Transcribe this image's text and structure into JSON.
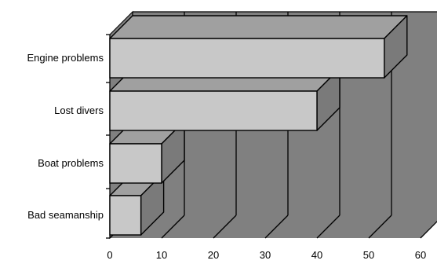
{
  "chart_data": {
    "type": "bar",
    "orientation": "horizontal",
    "three_d": true,
    "categories": [
      "Engine problems",
      "Lost divers",
      "Boat problems",
      "Bad seamanship"
    ],
    "values": [
      53,
      40,
      10,
      6
    ],
    "title": "",
    "xlabel": "",
    "ylabel": "",
    "xlim": [
      0,
      60
    ],
    "xticks": [
      0,
      10,
      20,
      30,
      40,
      50,
      60
    ],
    "grid": true,
    "legend": "none",
    "colors": {
      "bar_front": "#c8c8c8",
      "bar_top": "#a0a0a0",
      "bar_side": "#7a7a7a",
      "back_wall": "#808080",
      "floor": "#808080",
      "outline": "#000000"
    }
  }
}
